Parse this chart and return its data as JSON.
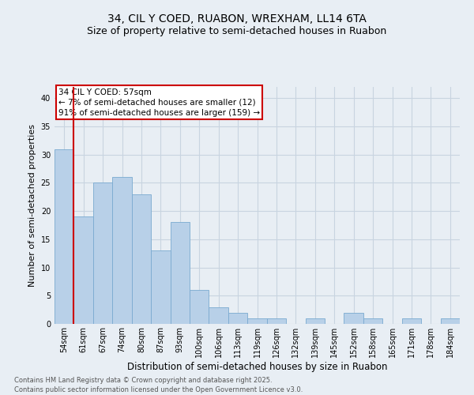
{
  "title": "34, CIL Y COED, RUABON, WREXHAM, LL14 6TA",
  "subtitle": "Size of property relative to semi-detached houses in Ruabon",
  "xlabel": "Distribution of semi-detached houses by size in Ruabon",
  "ylabel": "Number of semi-detached properties",
  "categories": [
    "54sqm",
    "61sqm",
    "67sqm",
    "74sqm",
    "80sqm",
    "87sqm",
    "93sqm",
    "100sqm",
    "106sqm",
    "113sqm",
    "119sqm",
    "126sqm",
    "132sqm",
    "139sqm",
    "145sqm",
    "152sqm",
    "158sqm",
    "165sqm",
    "171sqm",
    "178sqm",
    "184sqm"
  ],
  "values": [
    31,
    19,
    25,
    26,
    23,
    13,
    18,
    6,
    3,
    2,
    1,
    1,
    0,
    1,
    0,
    2,
    1,
    0,
    1,
    0,
    1
  ],
  "bar_color": "#b8d0e8",
  "bar_edge_color": "#7aaad0",
  "highlight_bar_index": 1,
  "annotation_box_text": "34 CIL Y COED: 57sqm\n← 7% of semi-detached houses are smaller (12)\n91% of semi-detached houses are larger (159) →",
  "annotation_box_edge_color": "#cc0000",
  "red_line_color": "#cc0000",
  "ylim": [
    0,
    42
  ],
  "yticks": [
    0,
    5,
    10,
    15,
    20,
    25,
    30,
    35,
    40
  ],
  "grid_color": "#c8d4e0",
  "bg_color": "#e8eef4",
  "footer": "Contains HM Land Registry data © Crown copyright and database right 2025.\nContains public sector information licensed under the Open Government Licence v3.0.",
  "title_fontsize": 10,
  "subtitle_fontsize": 9,
  "xlabel_fontsize": 8.5,
  "ylabel_fontsize": 8,
  "tick_fontsize": 7,
  "annotation_fontsize": 7.5,
  "footer_fontsize": 6
}
